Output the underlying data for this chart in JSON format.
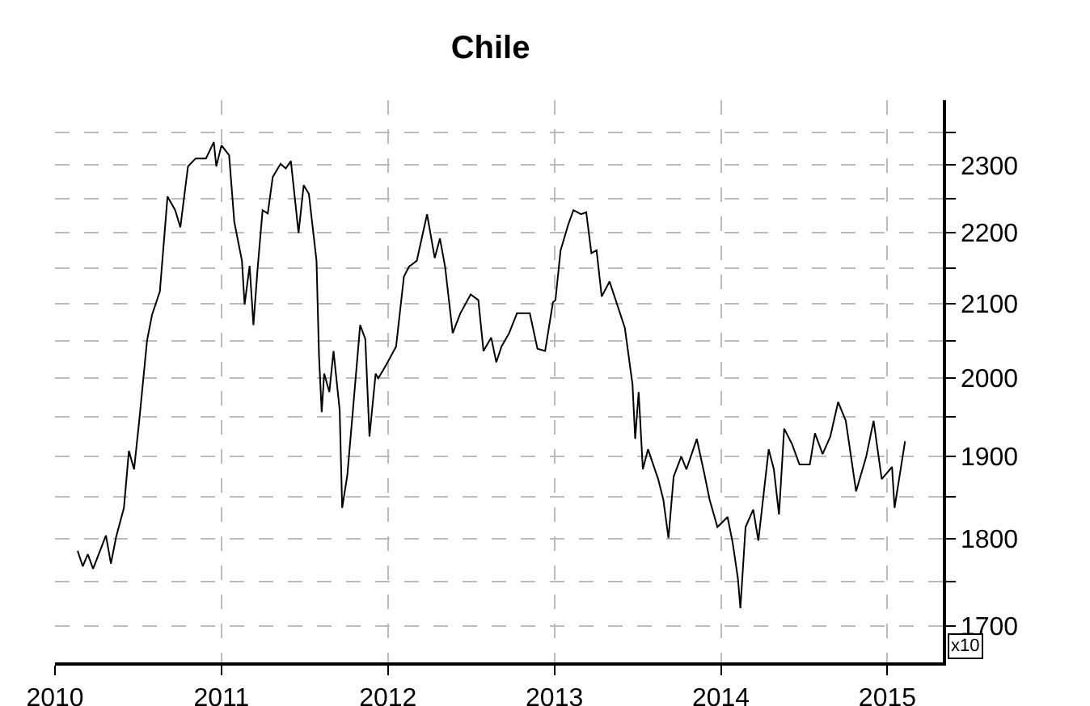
{
  "chart_data": {
    "type": "line",
    "title": "Chile",
    "x": [
      2010.136,
      2010.167,
      2010.197,
      2010.229,
      2010.306,
      2010.336,
      2010.367,
      2010.414,
      2010.444,
      2010.475,
      2010.506,
      2010.553,
      2010.583,
      2010.63,
      2010.676,
      2010.722,
      2010.753,
      2010.799,
      2010.845,
      2010.907,
      2010.954,
      2010.969,
      2011.0,
      2011.046,
      2011.077,
      2011.123,
      2011.139,
      2011.169,
      2011.192,
      2011.216,
      2011.247,
      2011.278,
      2011.308,
      2011.355,
      2011.386,
      2011.417,
      2011.463,
      2011.494,
      2011.525,
      2011.571,
      2011.586,
      2011.602,
      2011.617,
      2011.648,
      2011.673,
      2011.71,
      2011.725,
      2011.756,
      2011.787,
      2011.833,
      2011.864,
      2011.889,
      2011.926,
      2011.942,
      2011.988,
      2012.049,
      2012.096,
      2012.127,
      2012.173,
      2012.235,
      2012.281,
      2012.312,
      2012.343,
      2012.389,
      2012.435,
      2012.497,
      2012.543,
      2012.574,
      2012.62,
      2012.651,
      2012.682,
      2012.728,
      2012.775,
      2012.852,
      2012.898,
      2012.944,
      2012.991,
      2013.006,
      2013.037,
      2013.083,
      2013.114,
      2013.16,
      2013.191,
      2013.222,
      2013.253,
      2013.284,
      2013.331,
      2013.361,
      2013.423,
      2013.469,
      2013.485,
      2013.506,
      2013.531,
      2013.562,
      2013.623,
      2013.654,
      2013.685,
      2013.716,
      2013.762,
      2013.793,
      2013.855,
      2013.901,
      2013.932,
      2013.979,
      2014.04,
      2014.071,
      2014.102,
      2014.117,
      2014.148,
      2014.194,
      2014.225,
      2014.287,
      2014.318,
      2014.349,
      2014.38,
      2014.426,
      2014.472,
      2014.534,
      2014.565,
      2014.611,
      2014.657,
      2014.704,
      2014.75,
      2014.812,
      2014.873,
      2014.917,
      2014.966,
      2015.028,
      2015.043,
      2015.074,
      2015.106
    ],
    "series": [
      {
        "color": "#000000",
        "values": [
          1786,
          1768,
          1782,
          1765,
          1804,
          1771,
          1802,
          1837,
          1907,
          1884,
          1945,
          2050,
          2085,
          2117,
          2253,
          2233,
          2208,
          2298,
          2310,
          2310,
          2335,
          2298,
          2330,
          2315,
          2216,
          2160,
          2099,
          2153,
          2071,
          2146,
          2233,
          2228,
          2282,
          2302,
          2295,
          2306,
          2200,
          2270,
          2257,
          2160,
          2029,
          1956,
          2006,
          1982,
          2036,
          1959,
          1837,
          1877,
          1952,
          2071,
          2052,
          1925,
          2006,
          2000,
          2017,
          2042,
          2138,
          2152,
          2160,
          2227,
          2164,
          2192,
          2152,
          2060,
          2087,
          2113,
          2105,
          2036,
          2054,
          2021,
          2042,
          2060,
          2087,
          2087,
          2039,
          2036,
          2102,
          2105,
          2175,
          2212,
          2233,
          2227,
          2230,
          2171,
          2175,
          2110,
          2131,
          2110,
          2067,
          1992,
          1922,
          1982,
          1884,
          1909,
          1872,
          1847,
          1801,
          1875,
          1900,
          1884,
          1922,
          1878,
          1847,
          1814,
          1826,
          1795,
          1754,
          1720,
          1814,
          1835,
          1798,
          1909,
          1884,
          1829,
          1935,
          1916,
          1890,
          1890,
          1929,
          1903,
          1925,
          1969,
          1945,
          1857,
          1900,
          1945,
          1872,
          1887,
          1837,
          1877,
          1919
        ]
      }
    ],
    "xlim": [
      2010,
      2015.333
    ],
    "xticks": [
      2010,
      2011,
      2012,
      2013,
      2014,
      2015
    ],
    "ylim": [
      1660,
      2400
    ],
    "log": "y",
    "yticks": [
      1700,
      {
        "value": 1750,
        "label": null
      },
      1800,
      {
        "value": 1850,
        "label": null
      },
      1900,
      {
        "value": 1950,
        "label": null
      },
      2000,
      {
        "value": 2050,
        "label": null
      },
      2100,
      {
        "value": 2150,
        "label": null
      },
      2200,
      {
        "value": 2250,
        "label": null
      },
      2300,
      {
        "value": 2350,
        "label": null
      }
    ],
    "grid": true,
    "annotations": [
      "x10"
    ]
  }
}
